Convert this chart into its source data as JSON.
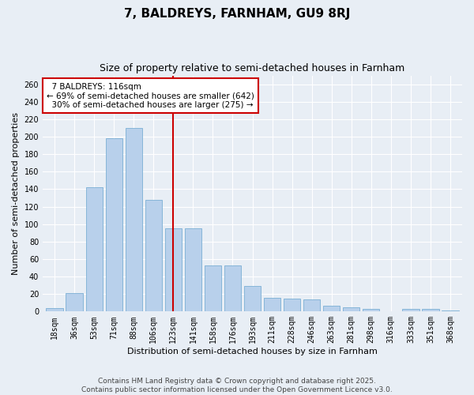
{
  "title": "7, BALDREYS, FARNHAM, GU9 8RJ",
  "subtitle": "Size of property relative to semi-detached houses in Farnham",
  "xlabel": "Distribution of semi-detached houses by size in Farnham",
  "ylabel": "Number of semi-detached properties",
  "categories": [
    "18sqm",
    "36sqm",
    "53sqm",
    "71sqm",
    "88sqm",
    "106sqm",
    "123sqm",
    "141sqm",
    "158sqm",
    "176sqm",
    "193sqm",
    "211sqm",
    "228sqm",
    "246sqm",
    "263sqm",
    "281sqm",
    "298sqm",
    "316sqm",
    "333sqm",
    "351sqm",
    "368sqm"
  ],
  "values": [
    4,
    21,
    142,
    198,
    210,
    128,
    95,
    95,
    53,
    53,
    29,
    16,
    15,
    14,
    7,
    5,
    3,
    0,
    3,
    3,
    1
  ],
  "bar_color": "#b8d0eb",
  "bar_edge_color": "#7bafd4",
  "marker_bin_index": 6,
  "annotation_title": "7 BALDREYS: 116sqm",
  "annotation_line1": "← 69% of semi-detached houses are smaller (642)",
  "annotation_line2": "30% of semi-detached houses are larger (275) →",
  "annotation_box_color": "#ffffff",
  "annotation_box_edge": "#cc0000",
  "marker_line_color": "#cc0000",
  "ylim": [
    0,
    270
  ],
  "yticks": [
    0,
    20,
    40,
    60,
    80,
    100,
    120,
    140,
    160,
    180,
    200,
    220,
    240,
    260
  ],
  "footer_line1": "Contains HM Land Registry data © Crown copyright and database right 2025.",
  "footer_line2": "Contains public sector information licensed under the Open Government Licence v3.0.",
  "background_color": "#e8eef5",
  "grid_color": "#ffffff",
  "title_fontsize": 11,
  "subtitle_fontsize": 9,
  "axis_label_fontsize": 8,
  "tick_fontsize": 7,
  "annotation_fontsize": 7.5,
  "footer_fontsize": 6.5
}
